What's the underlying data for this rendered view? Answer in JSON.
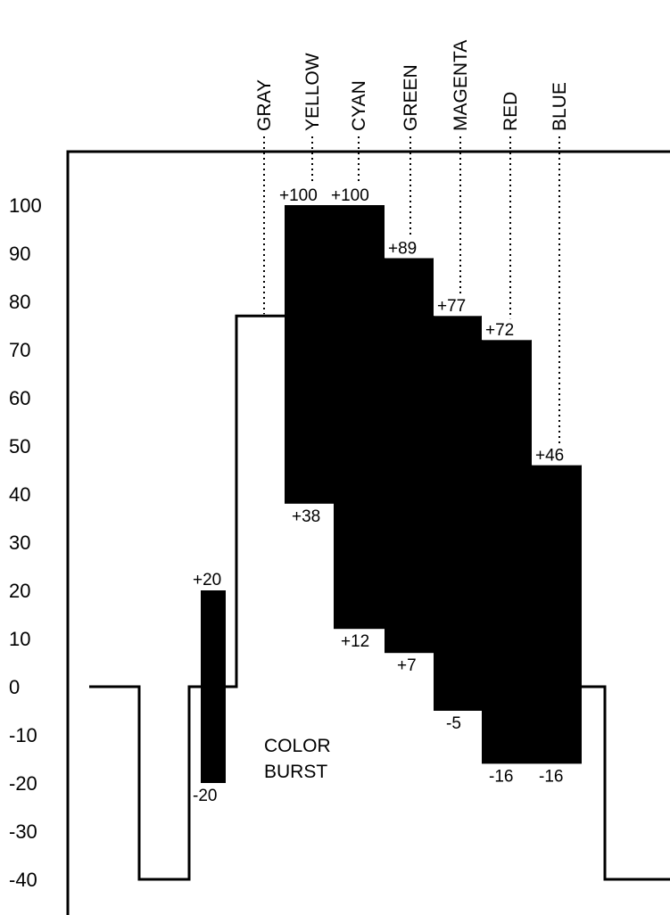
{
  "chart_data": {
    "type": "waveform",
    "y_ticks": [
      "100",
      "90",
      "80",
      "70",
      "60",
      "50",
      "40",
      "30",
      "20",
      "10",
      "0",
      "-10",
      "-20",
      "-30",
      "-40"
    ],
    "ylim": [
      -40,
      100
    ],
    "sync_level": -40,
    "blanking_level": 0,
    "color_burst": {
      "label_lines": [
        "COLOR",
        "BURST"
      ],
      "max": 20,
      "min": -20,
      "max_label": "+20",
      "min_label": "-20"
    },
    "bars": [
      {
        "name": "GRAY",
        "top": 77,
        "bottom": 77,
        "top_label": "",
        "bottom_label": ""
      },
      {
        "name": "YELLOW",
        "top": 100,
        "bottom": 38,
        "top_label": "+100",
        "bottom_label": "+38"
      },
      {
        "name": "CYAN",
        "top": 100,
        "bottom": 12,
        "top_label": "+100",
        "bottom_label": "+12"
      },
      {
        "name": "GREEN",
        "top": 89,
        "bottom": 7,
        "top_label": "+89",
        "bottom_label": "+7"
      },
      {
        "name": "MAGENTA",
        "top": 77,
        "bottom": -5,
        "top_label": "+77",
        "bottom_label": "-5"
      },
      {
        "name": "RED",
        "top": 72,
        "bottom": -16,
        "top_label": "+72",
        "bottom_label": "-16"
      },
      {
        "name": "BLUE",
        "top": 46,
        "bottom": -16,
        "top_label": "+46",
        "bottom_label": "-16"
      }
    ],
    "colors": {
      "foreground": "#000000",
      "background": "#ffffff"
    }
  }
}
